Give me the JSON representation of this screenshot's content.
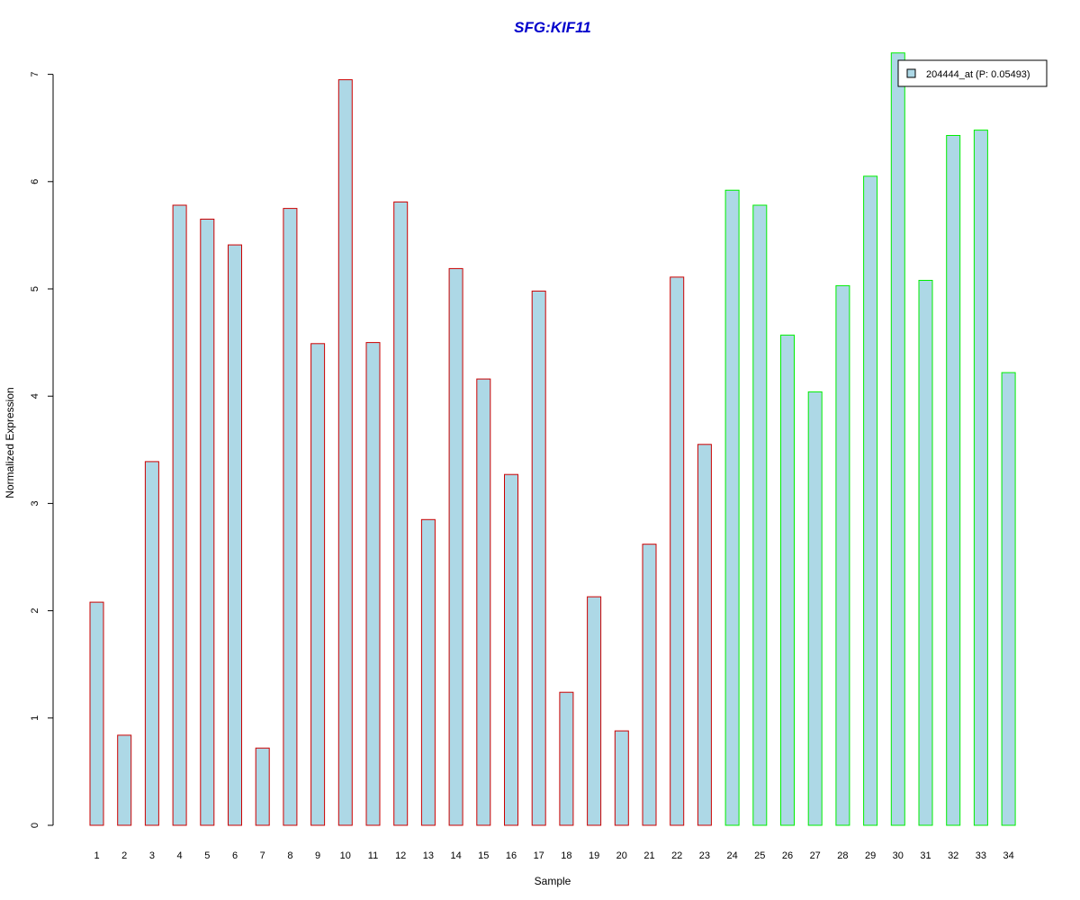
{
  "chart_data": {
    "type": "bar",
    "title": "SFG:KIF11",
    "title_color": "#0000CC",
    "xlabel": "Sample",
    "ylabel": "Normalized Expression",
    "ylim": [
      0,
      7
    ],
    "yticks": [
      "0",
      "1",
      "2",
      "3",
      "4",
      "5",
      "6",
      "7"
    ],
    "categories": [
      "1",
      "2",
      "3",
      "4",
      "5",
      "6",
      "7",
      "8",
      "9",
      "10",
      "11",
      "12",
      "13",
      "14",
      "15",
      "16",
      "17",
      "18",
      "19",
      "20",
      "21",
      "22",
      "23",
      "24",
      "25",
      "26",
      "27",
      "28",
      "29",
      "30",
      "31",
      "32",
      "33",
      "34"
    ],
    "series": [
      {
        "name": "204444_at (P: 0.05493)",
        "fill": "#ADD8E6",
        "values": [
          2.08,
          0.84,
          3.39,
          5.78,
          5.65,
          5.41,
          0.72,
          5.75,
          4.49,
          6.95,
          4.5,
          5.81,
          2.85,
          5.19,
          4.16,
          3.27,
          4.98,
          1.24,
          2.13,
          0.88,
          2.62,
          5.11,
          3.55,
          5.92,
          5.78,
          4.57,
          4.04,
          5.03,
          6.05,
          7.2,
          5.08,
          6.43,
          6.48,
          4.22
        ]
      }
    ],
    "group_border_colors": [
      "#CC0000",
      "#CC0000",
      "#CC0000",
      "#CC0000",
      "#CC0000",
      "#CC0000",
      "#CC0000",
      "#CC0000",
      "#CC0000",
      "#CC0000",
      "#CC0000",
      "#CC0000",
      "#CC0000",
      "#CC0000",
      "#CC0000",
      "#CC0000",
      "#CC0000",
      "#CC0000",
      "#CC0000",
      "#CC0000",
      "#CC0000",
      "#CC0000",
      "#CC0000",
      "#00EE00",
      "#00EE00",
      "#00EE00",
      "#00EE00",
      "#00EE00",
      "#00EE00",
      "#00EE00",
      "#00EE00",
      "#00EE00",
      "#00EE00",
      "#00EE00"
    ],
    "legend_position": "top-right",
    "grid": false
  }
}
